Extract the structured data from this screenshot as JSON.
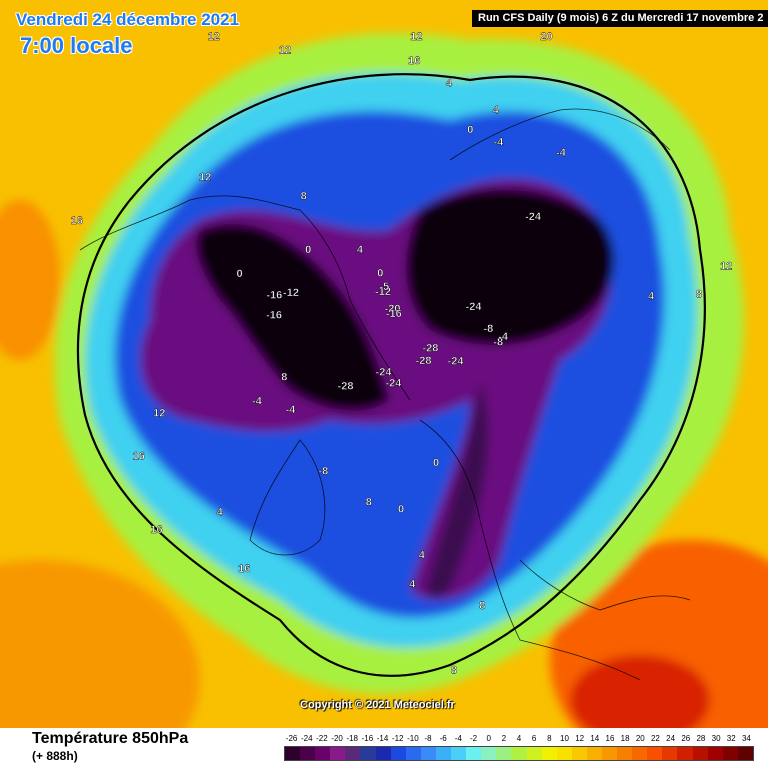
{
  "header": {
    "date": "Vendredi 24 décembre 2021",
    "time": "7:00 locale",
    "run_info": "Run CFS Daily (9 mois) 6 Z du Mercredi 17 novembre 2"
  },
  "footer": {
    "parameter": "Température 850hPa",
    "lead_time": "(+ 888h)",
    "copyright": "Copyright © 2021 Meteociel.fr"
  },
  "legend": {
    "values": [
      "-26",
      "-24",
      "-22",
      "-20",
      "-18",
      "-16",
      "-14",
      "-12",
      "-10",
      "-8",
      "-6",
      "-4",
      "-2",
      "0",
      "2",
      "4",
      "6",
      "8",
      "10",
      "12",
      "14",
      "16",
      "18",
      "20",
      "22",
      "24",
      "26",
      "28",
      "30",
      "32",
      "34"
    ],
    "colors": [
      "#2d002d",
      "#4a004a",
      "#6a006a",
      "#8a1a8a",
      "#5a2a7a",
      "#2a3a9a",
      "#1a2ab0",
      "#1a4ae0",
      "#2a6af0",
      "#3a8af8",
      "#3ab0f8",
      "#4ad0f8",
      "#6af0f0",
      "#8af0c0",
      "#9af080",
      "#b0f040",
      "#d0f020",
      "#f0f000",
      "#f8e000",
      "#f8c800",
      "#f8b000",
      "#f89800",
      "#f88000",
      "#f86800",
      "#f85000",
      "#e83800",
      "#d02000",
      "#b81000",
      "#a00000",
      "#800000",
      "#600000"
    ]
  },
  "map": {
    "contour_labels": [
      {
        "text": "-28",
        "lon": 205,
        "lat": 75
      },
      {
        "text": "-28",
        "lon": 322,
        "lat": 82
      },
      {
        "text": "-28",
        "lon": 300,
        "lat": 82
      },
      {
        "text": "-24",
        "lon": 318,
        "lat": 76
      },
      {
        "text": "-24",
        "lon": 248,
        "lat": 80
      },
      {
        "text": "-24",
        "lon": 232,
        "lat": 82
      },
      {
        "text": "-24",
        "lon": 1,
        "lat": 72
      },
      {
        "text": "-24",
        "lon": 21,
        "lat": 52
      },
      {
        "text": "-20",
        "lon": 75,
        "lat": 84
      },
      {
        "text": "-16",
        "lon": 73,
        "lat": 85
      },
      {
        "text": "-16",
        "lon": 150,
        "lat": 64
      },
      {
        "text": "-16",
        "lon": 141,
        "lat": 63
      },
      {
        "text": "-12",
        "lon": 137,
        "lat": 66
      },
      {
        "text": "-12",
        "lon": 85,
        "lat": 80
      },
      {
        "text": "-8",
        "lon": 345,
        "lat": 70
      },
      {
        "text": "-8",
        "lon": 337,
        "lat": 68
      },
      {
        "text": "-8",
        "lon": 222,
        "lat": 58
      },
      {
        "text": "-4",
        "lon": 340,
        "lat": 67
      },
      {
        "text": "-4",
        "lon": 195,
        "lat": 63
      },
      {
        "text": "-4",
        "lon": 185,
        "lat": 58
      },
      {
        "text": "-4",
        "lon": 28,
        "lat": 40
      },
      {
        "text": "-4",
        "lon": 42,
        "lat": 45
      },
      {
        "text": "-5",
        "lon": 82,
        "lat": 79
      },
      {
        "text": "0",
        "lon": 252,
        "lat": 54
      },
      {
        "text": "0",
        "lon": 115,
        "lat": 64
      },
      {
        "text": "0",
        "lon": 138,
        "lat": 55
      },
      {
        "text": "0",
        "lon": 83,
        "lat": 76
      },
      {
        "text": "0",
        "lon": 268,
        "lat": 62
      },
      {
        "text": "0",
        "lon": 50,
        "lat": 45
      },
      {
        "text": "4",
        "lon": 205,
        "lat": 40
      },
      {
        "text": "4",
        "lon": 92,
        "lat": 70
      },
      {
        "text": "4",
        "lon": 46,
        "lat": 40
      },
      {
        "text": "4",
        "lon": 349,
        "lat": 38
      },
      {
        "text": "4",
        "lon": 58,
        "lat": 38
      },
      {
        "text": "4",
        "lon": 257,
        "lat": 45
      },
      {
        "text": "4",
        "lon": 254,
        "lat": 40
      },
      {
        "text": "8",
        "lon": 103,
        "lat": 55
      },
      {
        "text": "8",
        "lon": 241,
        "lat": 55
      },
      {
        "text": "8",
        "lon": 348,
        "lat": 30
      },
      {
        "text": "8",
        "lon": 260,
        "lat": 25
      },
      {
        "text": "8",
        "lon": 268,
        "lat": 34
      },
      {
        "text": "8",
        "lon": 180,
        "lat": 65
      },
      {
        "text": "12",
        "lon": 120,
        "lat": 40
      },
      {
        "text": "12",
        "lon": 178,
        "lat": 40
      },
      {
        "text": "12",
        "lon": 66,
        "lat": 30
      },
      {
        "text": "12",
        "lon": 352,
        "lat": 25
      },
      {
        "text": "12",
        "lon": 98,
        "lat": 18
      },
      {
        "text": "12",
        "lon": 91,
        "lat": 30
      },
      {
        "text": "16",
        "lon": 217,
        "lat": 35
      },
      {
        "text": "16",
        "lon": 199,
        "lat": 30
      },
      {
        "text": "16",
        "lon": 185,
        "lat": 34
      },
      {
        "text": "16",
        "lon": 140,
        "lat": 25
      },
      {
        "text": "16",
        "lon": 66,
        "lat": 35
      },
      {
        "text": "20",
        "lon": 45,
        "lat": 22
      }
    ]
  }
}
